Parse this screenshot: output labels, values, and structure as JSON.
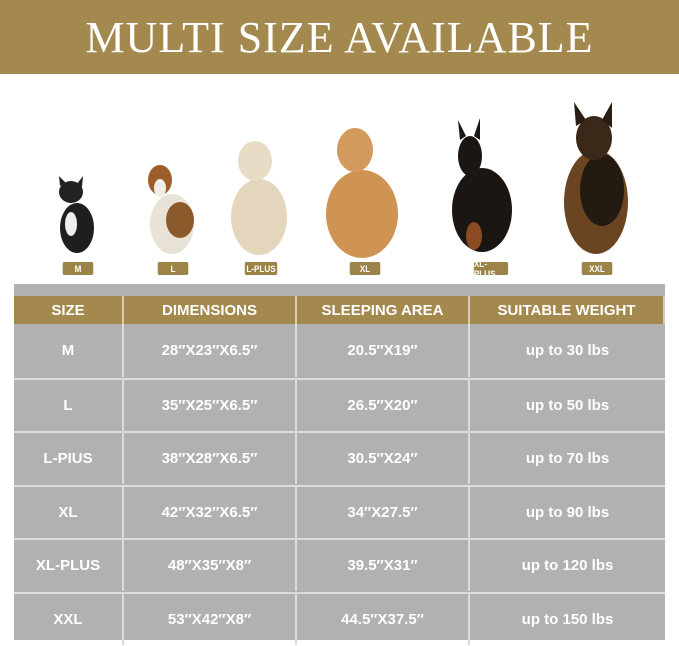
{
  "banner": {
    "title": "MULTI SIZE AVAILABLE"
  },
  "colors": {
    "gold": "#a4894f",
    "table_bg": "#b1b1b1"
  },
  "dogs": [
    {
      "label": "M",
      "breed_icon": "french-bulldog"
    },
    {
      "label": "L",
      "breed_icon": "beagle"
    },
    {
      "label": "L-PLUS",
      "breed_icon": "golden-retriever-puppy"
    },
    {
      "label": "XL",
      "breed_icon": "golden-retriever"
    },
    {
      "label": "XL-PLUS",
      "breed_icon": "doberman"
    },
    {
      "label": "XXL",
      "breed_icon": "german-shepherd"
    }
  ],
  "table": {
    "headers": [
      "SIZE",
      "DIMENSIONS",
      "SLEEPING AREA",
      "SUITABLE WEIGHT"
    ],
    "rows": [
      [
        "M",
        "28″X23″X6.5″",
        "20.5″X19″",
        "up to 30 lbs"
      ],
      [
        "L",
        "35″X25″X6.5″",
        "26.5″X20″",
        "up to 50 lbs"
      ],
      [
        "L-PIUS",
        "38″X28″X6.5″",
        "30.5″X24″",
        "up to 70 lbs"
      ],
      [
        "XL",
        "42″X32″X6.5″",
        "34″X27.5″",
        "up to 90 lbs"
      ],
      [
        "XL-PLUS",
        "48″X35″X8″",
        "39.5″X31″",
        "up to 120 lbs"
      ],
      [
        "XXL",
        "53″X42″X8″",
        "44.5″X37.5″",
        "up to 150 lbs"
      ]
    ]
  }
}
